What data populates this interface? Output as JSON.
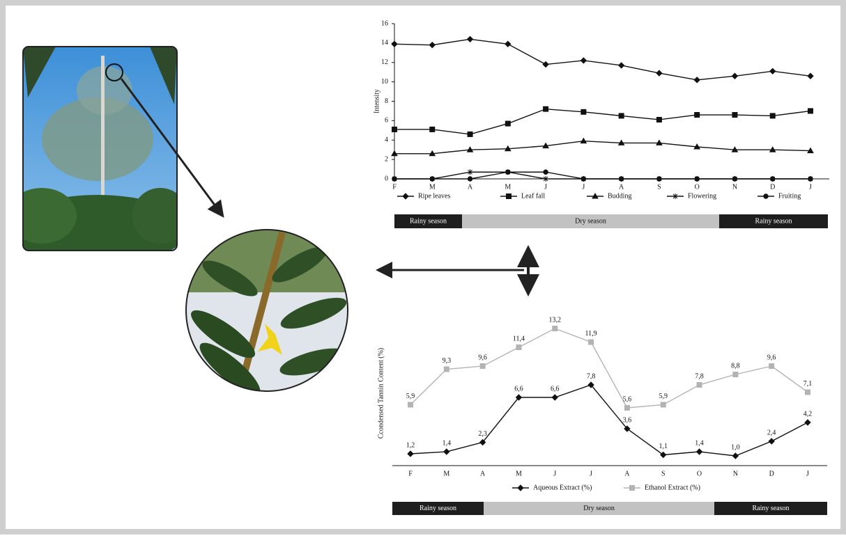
{
  "chart_data": [
    {
      "type": "line",
      "ylabel": "Intensity",
      "categories": [
        "F",
        "M",
        "A",
        "M",
        "J",
        "J",
        "A",
        "S",
        "O",
        "N",
        "D",
        "J"
      ],
      "ylim": [
        0,
        16
      ],
      "yticks": [
        0,
        2,
        4,
        6,
        8,
        10,
        12,
        14,
        16
      ],
      "series": [
        {
          "name": "Ripe leaves",
          "color": "#111111",
          "marker": "diamond",
          "values": [
            13.9,
            13.8,
            14.4,
            13.9,
            11.8,
            12.2,
            11.7,
            10.9,
            10.2,
            10.6,
            11.1,
            10.6
          ]
        },
        {
          "name": "Leaf fall",
          "color": "#111111",
          "marker": "square",
          "values": [
            5.1,
            5.1,
            4.6,
            5.7,
            7.2,
            6.9,
            6.5,
            6.1,
            6.6,
            6.6,
            6.5,
            7.0
          ]
        },
        {
          "name": "Budding",
          "color": "#111111",
          "marker": "triangle",
          "values": [
            2.6,
            2.6,
            3.0,
            3.1,
            3.4,
            3.9,
            3.7,
            3.7,
            3.3,
            3.0,
            3.0,
            2.9
          ]
        },
        {
          "name": "Flowering",
          "color": "#111111",
          "marker": "star",
          "values": [
            0,
            0,
            0.7,
            0.7,
            0,
            0,
            0,
            0,
            0,
            0,
            0,
            0
          ]
        },
        {
          "name": "Fruiting",
          "color": "#111111",
          "marker": "circle",
          "values": [
            0,
            0,
            0,
            0.7,
            0.7,
            0,
            0,
            0,
            0,
            0,
            0,
            0
          ]
        }
      ],
      "seasons": [
        "Rainy season",
        "Dry season",
        "Rainy season"
      ]
    },
    {
      "type": "line",
      "ylabel": "Ccondensed Tannin Content (%)",
      "categories": [
        "F",
        "M",
        "A",
        "M",
        "J",
        "J",
        "A",
        "S",
        "O",
        "N",
        "D",
        "J"
      ],
      "ylim": [
        0,
        14
      ],
      "series": [
        {
          "name": "Aqueous Extract (%)",
          "color": "#111111",
          "marker": "diamond",
          "values": [
            1.2,
            1.4,
            2.3,
            6.6,
            6.6,
            7.8,
            3.6,
            1.1,
            1.4,
            1.0,
            2.4,
            4.2
          ],
          "value_labels": [
            "1,2",
            "1,4",
            "2,3",
            "6,6",
            "6,6",
            "7,8",
            "3,6",
            "1,1",
            "1,4",
            "1,0",
            "2,4",
            "4,2"
          ]
        },
        {
          "name": "Ethanol Extract (%)",
          "color": "#b3b3b3",
          "marker": "square",
          "values": [
            5.9,
            9.3,
            9.6,
            11.4,
            13.2,
            11.9,
            5.6,
            5.9,
            7.8,
            8.8,
            9.6,
            7.1
          ],
          "value_labels": [
            "5,9",
            "9,3",
            "9,6",
            "11,4",
            "13,2",
            "11,9",
            "5,6",
            "5,9",
            "7,8",
            "8,8",
            "9,6",
            "7,1"
          ]
        }
      ],
      "seasons": [
        "Rainy season",
        "Dry season",
        "Rainy season"
      ]
    }
  ]
}
